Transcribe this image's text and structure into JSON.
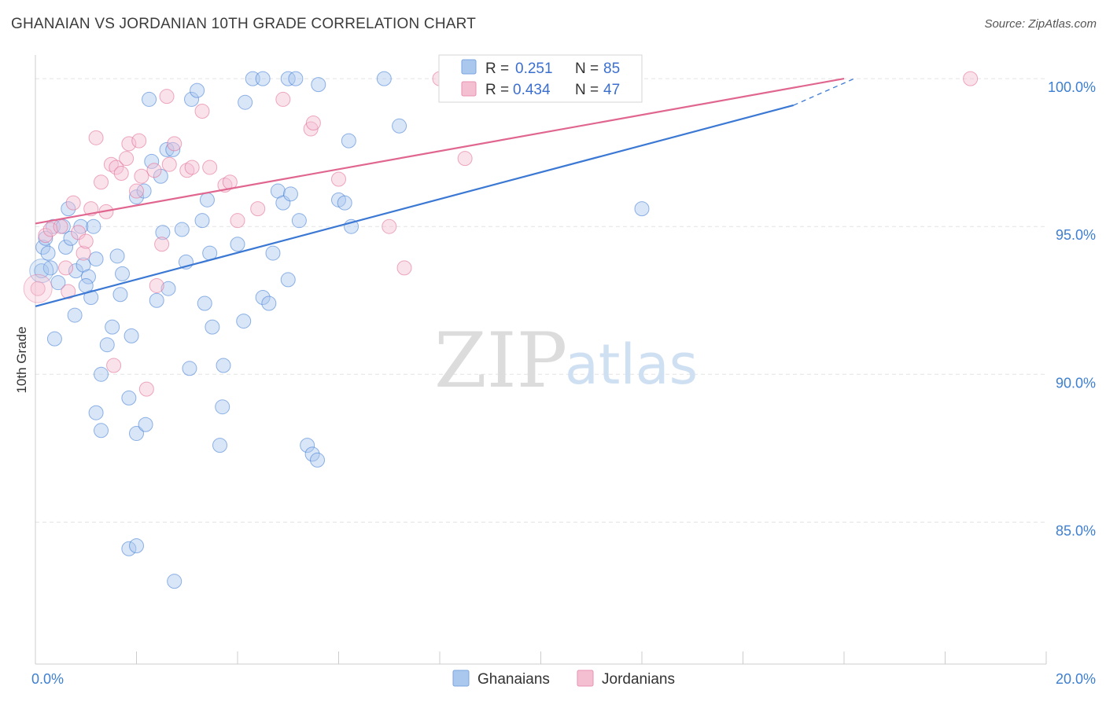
{
  "header": {
    "title": "GHANAIAN VS JORDANIAN 10TH GRADE CORRELATION CHART",
    "source": "Source: ZipAtlas.com"
  },
  "watermark": {
    "part1": "ZIP",
    "part2": "atlas"
  },
  "colors": {
    "blue": "#3b78d4",
    "blue_fill": "#aac8ee",
    "pink": "#e0668f",
    "pink_fill": "#f5bfd2",
    "grid": "#e3e3e3",
    "tick_text": "#3d7fd1"
  },
  "legend": {
    "rows": [
      {
        "r_label": "R = ",
        "r_value": "0.251",
        "n_label": "N = ",
        "n_value": "85"
      },
      {
        "r_label": "R = ",
        "r_value": "0.434",
        "n_label": "N = ",
        "n_value": "47"
      }
    ]
  },
  "bottom_legend": {
    "items": [
      "Ghanaians",
      "Jordanians"
    ]
  },
  "chart_data": {
    "type": "scatter",
    "title": "GHANAIAN VS JORDANIAN 10TH GRADE CORRELATION CHART",
    "xlabel": "",
    "ylabel": "10th Grade",
    "xlim": [
      0,
      20
    ],
    "ylim": [
      80.2,
      100.8
    ],
    "x_tick_labels": [
      {
        "value": 0,
        "label": "0.0%"
      },
      {
        "value": 20,
        "label": "20.0%"
      }
    ],
    "x_minor_ticks": [
      0,
      2,
      4,
      6,
      8,
      10,
      12,
      14,
      16,
      18,
      20
    ],
    "y_ticks": [
      {
        "value": 100,
        "label": "100.0%"
      },
      {
        "value": 95,
        "label": "95.0%"
      },
      {
        "value": 90,
        "label": "90.0%"
      },
      {
        "value": 85,
        "label": "85.0%"
      }
    ],
    "series": [
      {
        "name": "Ghanaians",
        "color": "#3b78d4",
        "r": 0.251,
        "n": 85,
        "trend": {
          "x0": 0,
          "y0": 92.3,
          "x1": 15,
          "y1": 99.1,
          "dash_x1": 16.2,
          "dash_y1": 100.0
        },
        "points": [
          [
            0.12,
            93.5
          ],
          [
            0.15,
            94.3
          ],
          [
            0.2,
            94.6
          ],
          [
            0.25,
            94.1
          ],
          [
            0.3,
            93.6
          ],
          [
            0.35,
            95.0
          ],
          [
            0.45,
            93.1
          ],
          [
            0.55,
            95.0
          ],
          [
            0.6,
            94.3
          ],
          [
            0.65,
            95.6
          ],
          [
            0.7,
            94.6
          ],
          [
            0.8,
            93.5
          ],
          [
            0.9,
            95.0
          ],
          [
            0.95,
            93.7
          ],
          [
            1.05,
            93.3
          ],
          [
            1.1,
            92.6
          ],
          [
            1.15,
            95.0
          ],
          [
            1.2,
            93.9
          ],
          [
            0.38,
            91.2
          ],
          [
            0.78,
            92.0
          ],
          [
            1.3,
            90.0
          ],
          [
            1.42,
            91.0
          ],
          [
            1.52,
            91.6
          ],
          [
            1.62,
            94.0
          ],
          [
            1.68,
            92.7
          ],
          [
            1.72,
            93.4
          ],
          [
            1.85,
            89.2
          ],
          [
            1.9,
            91.3
          ],
          [
            2.0,
            88.0
          ],
          [
            2.18,
            88.3
          ],
          [
            1.2,
            88.7
          ],
          [
            1.3,
            88.1
          ],
          [
            2.25,
            99.3
          ],
          [
            2.3,
            97.2
          ],
          [
            2.4,
            92.5
          ],
          [
            2.48,
            96.7
          ],
          [
            2.52,
            94.8
          ],
          [
            2.6,
            97.6
          ],
          [
            2.63,
            92.9
          ],
          [
            2.72,
            97.6
          ],
          [
            2.9,
            94.9
          ],
          [
            2.98,
            93.8
          ],
          [
            3.05,
            90.2
          ],
          [
            3.09,
            99.3
          ],
          [
            3.2,
            99.6
          ],
          [
            3.3,
            95.2
          ],
          [
            3.35,
            92.4
          ],
          [
            3.4,
            95.9
          ],
          [
            3.45,
            94.1
          ],
          [
            3.5,
            91.6
          ],
          [
            3.72,
            90.3
          ],
          [
            3.7,
            88.9
          ],
          [
            3.65,
            87.6
          ],
          [
            4.0,
            94.4
          ],
          [
            4.12,
            91.8
          ],
          [
            4.15,
            99.2
          ],
          [
            4.3,
            100.0
          ],
          [
            4.5,
            100.0
          ],
          [
            4.5,
            92.6
          ],
          [
            4.62,
            92.4
          ],
          [
            4.7,
            94.1
          ],
          [
            4.8,
            96.2
          ],
          [
            4.9,
            95.8
          ],
          [
            5.0,
            93.2
          ],
          [
            5.05,
            96.1
          ],
          [
            5.0,
            100.0
          ],
          [
            5.15,
            100.0
          ],
          [
            5.22,
            95.2
          ],
          [
            5.38,
            87.6
          ],
          [
            5.48,
            87.3
          ],
          [
            5.58,
            87.1
          ],
          [
            5.6,
            99.8
          ],
          [
            6.0,
            95.9
          ],
          [
            6.12,
            95.8
          ],
          [
            6.2,
            97.9
          ],
          [
            6.25,
            95.0
          ],
          [
            6.9,
            100.0
          ],
          [
            7.2,
            98.4
          ],
          [
            12.0,
            95.6
          ],
          [
            1.85,
            84.1
          ],
          [
            2.0,
            84.2
          ],
          [
            2.75,
            83.0
          ],
          [
            1.0,
            93.0
          ],
          [
            2.0,
            96.0
          ],
          [
            2.15,
            96.2
          ]
        ]
      },
      {
        "name": "Jordanians",
        "color": "#e0668f",
        "r": 0.434,
        "n": 47,
        "trend": {
          "x0": 0,
          "y0": 95.1,
          "x1": 16.0,
          "y1": 100.0
        },
        "points": [
          [
            0.05,
            92.9
          ],
          [
            0.2,
            94.7
          ],
          [
            0.3,
            94.9
          ],
          [
            0.5,
            95.0
          ],
          [
            0.6,
            93.6
          ],
          [
            0.65,
            92.8
          ],
          [
            0.75,
            95.8
          ],
          [
            0.85,
            94.8
          ],
          [
            0.95,
            94.1
          ],
          [
            1.0,
            94.5
          ],
          [
            1.1,
            95.6
          ],
          [
            1.2,
            98.0
          ],
          [
            1.3,
            96.5
          ],
          [
            1.4,
            95.5
          ],
          [
            1.5,
            97.1
          ],
          [
            1.6,
            97.0
          ],
          [
            1.7,
            96.8
          ],
          [
            1.8,
            97.3
          ],
          [
            1.85,
            97.8
          ],
          [
            2.0,
            96.2
          ],
          [
            2.05,
            97.9
          ],
          [
            2.1,
            96.7
          ],
          [
            2.2,
            89.5
          ],
          [
            2.35,
            96.9
          ],
          [
            2.4,
            93.0
          ],
          [
            2.5,
            94.4
          ],
          [
            2.6,
            99.4
          ],
          [
            2.65,
            97.1
          ],
          [
            2.75,
            97.8
          ],
          [
            3.0,
            96.9
          ],
          [
            3.1,
            97.0
          ],
          [
            3.3,
            98.9
          ],
          [
            3.45,
            97.0
          ],
          [
            3.75,
            96.4
          ],
          [
            3.85,
            96.5
          ],
          [
            4.0,
            95.2
          ],
          [
            4.4,
            95.6
          ],
          [
            4.9,
            99.3
          ],
          [
            5.45,
            98.3
          ],
          [
            5.5,
            98.5
          ],
          [
            6.0,
            96.6
          ],
          [
            7.0,
            95.0
          ],
          [
            7.3,
            93.6
          ],
          [
            8.0,
            100.0
          ],
          [
            8.5,
            97.3
          ],
          [
            18.5,
            100.0
          ],
          [
            1.55,
            90.3
          ]
        ]
      }
    ],
    "legend_position": "top-center"
  }
}
